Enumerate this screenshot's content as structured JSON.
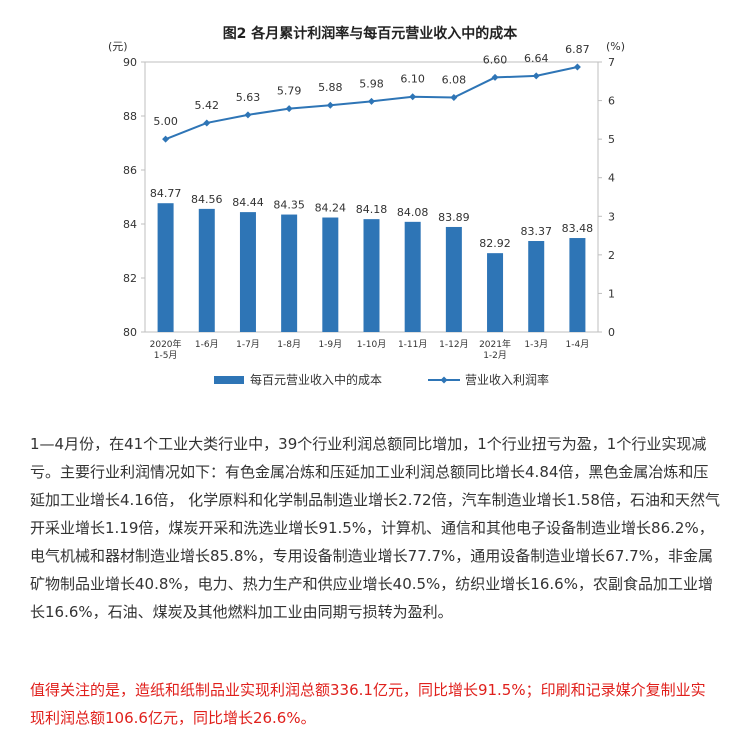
{
  "chart_data": {
    "type": "bar+line",
    "title": "图2  各月累计利润率与每百元营业收入中的成本",
    "y_left_unit": "(元)",
    "y_right_unit": "(%)",
    "y_left_range": [
      80,
      90
    ],
    "y_left_ticks": [
      "80",
      "82",
      "84",
      "86",
      "88",
      "90"
    ],
    "y_right_range": [
      0,
      7
    ],
    "y_right_ticks": [
      "0",
      "1",
      "2",
      "3",
      "4",
      "5",
      "6",
      "7"
    ],
    "categories": [
      [
        "2020年",
        "1-5月"
      ],
      [
        "1-6月"
      ],
      [
        "1-7月"
      ],
      [
        "1-8月"
      ],
      [
        "1-9月"
      ],
      [
        "1-10月"
      ],
      [
        "1-11月"
      ],
      [
        "1-12月"
      ],
      [
        "2021年",
        "1-2月"
      ],
      [
        "1-3月"
      ],
      [
        "1-4月"
      ]
    ],
    "series": [
      {
        "name": "每百元营业收入中的成本",
        "type": "bar",
        "axis": "left",
        "color": "#2e75b6",
        "values": [
          84.77,
          84.56,
          84.44,
          84.35,
          84.24,
          84.18,
          84.08,
          83.89,
          82.92,
          83.37,
          83.48
        ]
      },
      {
        "name": "营业收入利润率",
        "type": "line",
        "axis": "right",
        "color": "#2e75b6",
        "values": [
          5.0,
          5.42,
          5.63,
          5.79,
          5.88,
          5.98,
          6.1,
          6.08,
          6.6,
          6.64,
          6.87
        ]
      }
    ],
    "legend_position": "bottom",
    "grid": false
  },
  "paragraphs": {
    "p1": "1—4月份，在41个工业大类行业中，39个行业利润总额同比增加，1个行业扭亏为盈，1个行业实现减亏。主要行业利润情况如下：有色金属冶炼和压延加工业利润总额同比增长4.84倍，黑色金属冶炼和压延加工业增长4.16倍， 化学原料和化学制品制造业增长2.72倍，汽车制造业增长1.58倍，石油和天然气开采业增长1.19倍，煤炭开采和洗选业增长91.5%，计算机、通信和其他电子设备制造业增长86.2%，电气机械和器材制造业增长85.8%，专用设备制造业增长77.7%，通用设备制造业增长67.7%，非金属矿物制品业增长40.8%，电力、热力生产和供应业增长40.5%，纺织业增长16.6%，农副食品加工业增长16.6%，石油、煤炭及其他燃料加工业由同期亏损转为盈利。",
    "p2": "值得关注的是，造纸和纸制品业实现利润总额336.1亿元，同比增长91.5%；印刷和记录媒介复制业实现利润总额106.6亿元，同比增长26.6%。"
  }
}
